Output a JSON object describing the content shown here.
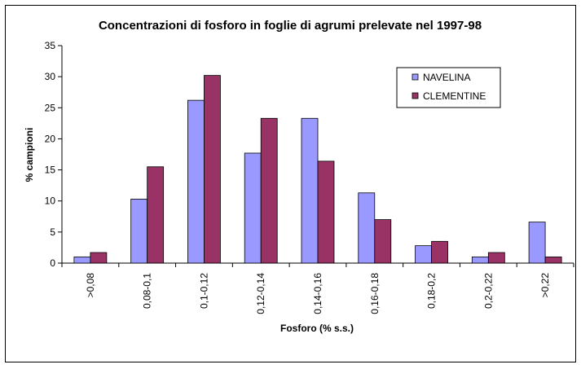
{
  "chart_data": {
    "type": "bar",
    "title": "Concentrazioni di fosforo in foglie di agrumi prelevate nel 1997-98",
    "xlabel": "Fosforo (% s.s.)",
    "ylabel": "% campioni",
    "ylim": [
      0,
      35
    ],
    "yticks": [
      0,
      5,
      10,
      15,
      20,
      25,
      30,
      35
    ],
    "categories": [
      ">0,08",
      "0,08-0,1",
      "0,1-0,12",
      "0,12-0,14",
      "0,14-0,16",
      "0,16-0,18",
      "0,18-0,2",
      "0,2-0,22",
      ">0,22"
    ],
    "series": [
      {
        "name": "NAVELINA",
        "color": "#9999ff",
        "values": [
          1.0,
          10.3,
          26.2,
          17.7,
          23.3,
          11.3,
          2.8,
          1.0,
          6.6
        ]
      },
      {
        "name": "CLEMENTINE",
        "color": "#993366",
        "values": [
          1.7,
          15.5,
          30.2,
          23.3,
          16.4,
          7.0,
          3.5,
          1.7,
          1.0
        ]
      }
    ],
    "grid": false,
    "legend": "top-right"
  }
}
